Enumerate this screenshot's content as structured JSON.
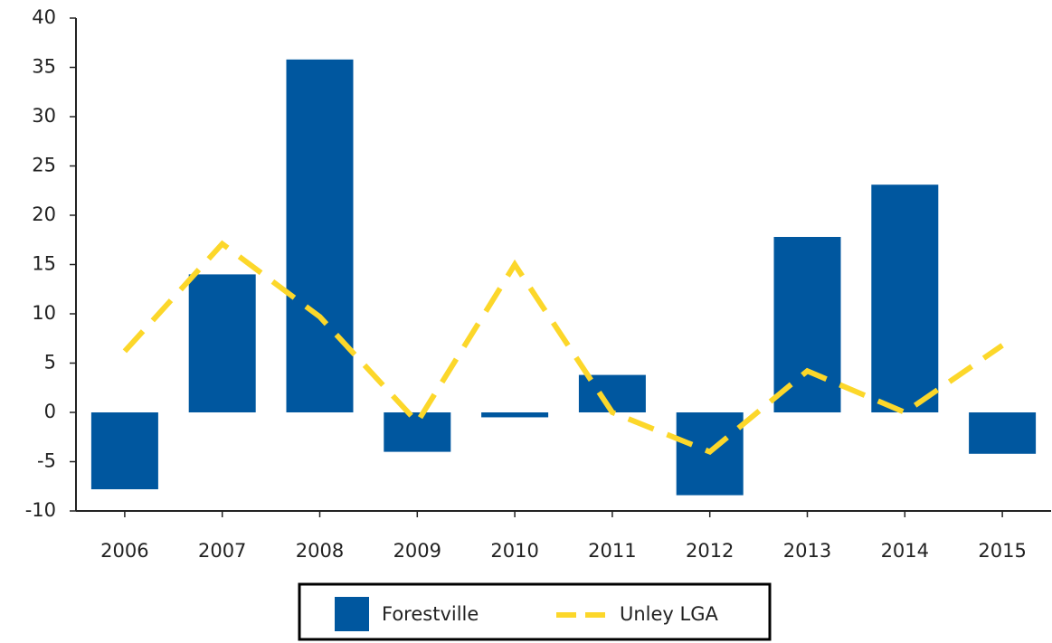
{
  "chart_data": {
    "type": "bar",
    "categories": [
      "2006",
      "2007",
      "2008",
      "2009",
      "2010",
      "2011",
      "2012",
      "2013",
      "2014",
      "2015"
    ],
    "series": [
      {
        "name": "Forestville",
        "type": "bar",
        "color": "#00579f",
        "values": [
          -7.8,
          14,
          35.8,
          -4.0,
          -0.5,
          3.8,
          -8.4,
          17.8,
          23.1,
          -4.2
        ]
      },
      {
        "name": "Unley LGA",
        "type": "line",
        "color": "#fcd72a",
        "values": [
          6.2,
          17.1,
          9.7,
          -1.0,
          15.0,
          0,
          -4.0,
          4.2,
          0,
          6.8
        ]
      }
    ],
    "ylim": [
      -10,
      40
    ],
    "yticks": [
      -10,
      -5,
      0,
      5,
      10,
      15,
      20,
      25,
      30,
      35,
      40
    ],
    "grid": false,
    "legend": "bottom"
  }
}
